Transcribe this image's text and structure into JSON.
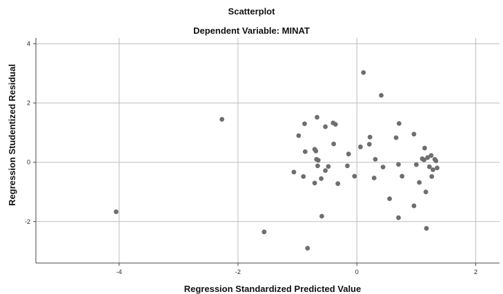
{
  "chart_data": {
    "type": "scatter",
    "title": "Scatterplot",
    "subtitle": "Dependent Variable: MINAT",
    "xlabel": "Regression Standardized Predicted Value",
    "ylabel": "Regression Studentized Residual",
    "xlim": [
      -5.4,
      2.4
    ],
    "ylim": [
      -3.4,
      4.2
    ],
    "xticks": [
      -4,
      -2,
      0,
      2
    ],
    "xtick_labels": [
      "-4",
      "-2",
      "0",
      "2"
    ],
    "yticks": [
      -2,
      0,
      2,
      4
    ],
    "ytick_labels": [
      "-2",
      "0",
      "2",
      "4"
    ],
    "grid": true,
    "colors": {
      "point": "#6e6e6e",
      "grid": "#bdbdbd",
      "axis": "#444444",
      "plot_bg": "#ffffff"
    },
    "points": [
      [
        -4.05,
        -1.67
      ],
      [
        -2.27,
        1.45
      ],
      [
        -1.56,
        -2.35
      ],
      [
        -0.83,
        -2.9
      ],
      [
        -0.88,
        1.3
      ],
      [
        -0.67,
        1.52
      ],
      [
        -0.53,
        1.2
      ],
      [
        -0.4,
        1.33
      ],
      [
        -0.36,
        1.28
      ],
      [
        -0.98,
        0.9
      ],
      [
        -0.87,
        0.36
      ],
      [
        -0.71,
        0.44
      ],
      [
        -0.69,
        0.38
      ],
      [
        -0.68,
        0.1
      ],
      [
        -0.65,
        0.07
      ],
      [
        -0.66,
        -0.12
      ],
      [
        -0.48,
        -0.14
      ],
      [
        -0.53,
        -0.28
      ],
      [
        -0.6,
        -0.55
      ],
      [
        -0.71,
        -0.7
      ],
      [
        -0.9,
        -0.48
      ],
      [
        -1.06,
        -0.33
      ],
      [
        -0.39,
        0.62
      ],
      [
        -0.32,
        -0.72
      ],
      [
        -0.14,
        0.28
      ],
      [
        -0.16,
        -0.12
      ],
      [
        -0.04,
        -0.47
      ],
      [
        -0.59,
        -1.82
      ],
      [
        0.11,
        3.03
      ],
      [
        0.41,
        2.26
      ],
      [
        0.22,
        0.85
      ],
      [
        0.21,
        0.61
      ],
      [
        0.06,
        0.52
      ],
      [
        0.31,
        0.1
      ],
      [
        0.44,
        -0.16
      ],
      [
        0.29,
        -0.53
      ],
      [
        0.71,
        1.31
      ],
      [
        0.66,
        0.83
      ],
      [
        0.96,
        0.95
      ],
      [
        0.7,
        -0.07
      ],
      [
        0.76,
        -0.47
      ],
      [
        0.55,
        -1.23
      ],
      [
        0.7,
        -1.87
      ],
      [
        0.96,
        -1.47
      ],
      [
        1.1,
        0.12
      ],
      [
        1.14,
        0.48
      ],
      [
        1.19,
        0.16
      ],
      [
        1.25,
        0.23
      ],
      [
        1.31,
        0.1
      ],
      [
        1.33,
        0.05
      ],
      [
        1.13,
        0.08
      ],
      [
        1.0,
        -0.08
      ],
      [
        1.22,
        -0.15
      ],
      [
        1.28,
        -0.25
      ],
      [
        1.35,
        -0.19
      ],
      [
        1.26,
        -0.48
      ],
      [
        1.05,
        -0.68
      ],
      [
        1.16,
        -1.0
      ],
      [
        1.17,
        -2.23
      ]
    ]
  }
}
